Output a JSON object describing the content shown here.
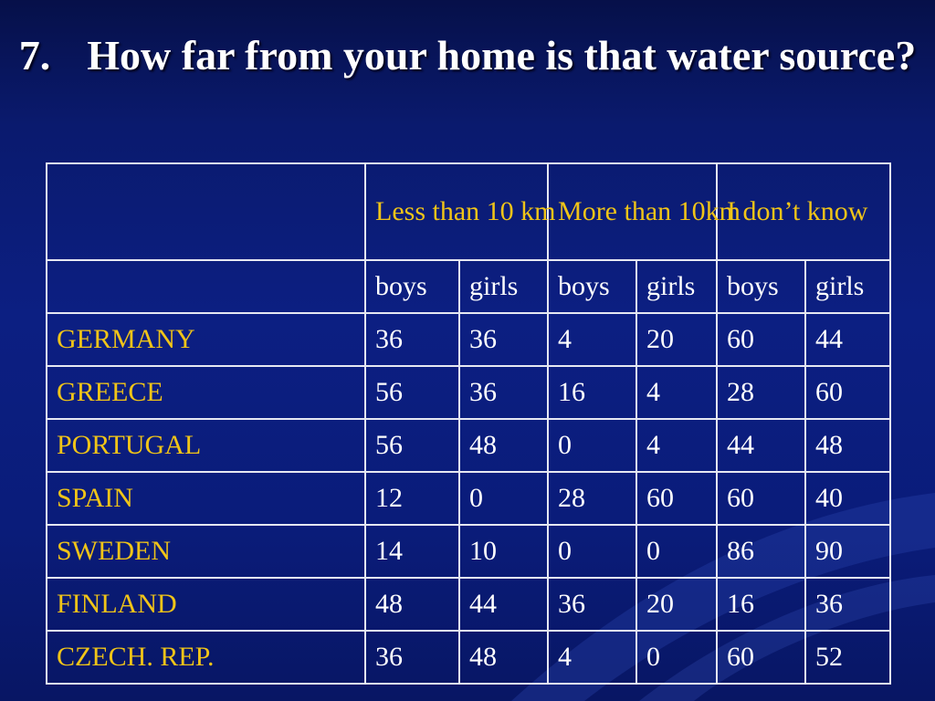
{
  "slide": {
    "title_number": "7.",
    "title_text": "How far from your home is that water source?"
  },
  "table": {
    "groups": [
      "Less than 10 km",
      "More than 10km",
      "I don’t know"
    ],
    "subheaders": [
      "boys",
      "girls",
      "boys",
      "girls",
      "boys",
      "girls"
    ],
    "rows": [
      {
        "country": "GERMANY",
        "values": [
          "36",
          "36",
          "4",
          "20",
          "60",
          "44"
        ]
      },
      {
        "country": "GREECE",
        "values": [
          "56",
          "36",
          "16",
          "4",
          "28",
          "60"
        ]
      },
      {
        "country": "PORTUGAL",
        "values": [
          "56",
          "48",
          "0",
          "4",
          "44",
          "48"
        ]
      },
      {
        "country": "SPAIN",
        "values": [
          "12",
          "0",
          "28",
          "60",
          "60",
          "40"
        ]
      },
      {
        "country": "SWEDEN",
        "values": [
          "14",
          "10",
          "0",
          "0",
          "86",
          "90"
        ]
      },
      {
        "country": "FINLAND",
        "values": [
          "48",
          "44",
          "36",
          "20",
          "16",
          "36"
        ]
      },
      {
        "country": "CZECH. REP.",
        "values": [
          "36",
          "48",
          "4",
          "0",
          "60",
          "52"
        ]
      }
    ]
  },
  "colors": {
    "background": "#0c1f82",
    "title_text": "#ffffff",
    "header_text": "#f0c418",
    "country_text": "#f0c418",
    "value_text": "#ffffff",
    "table_border": "#e6e8f2"
  }
}
